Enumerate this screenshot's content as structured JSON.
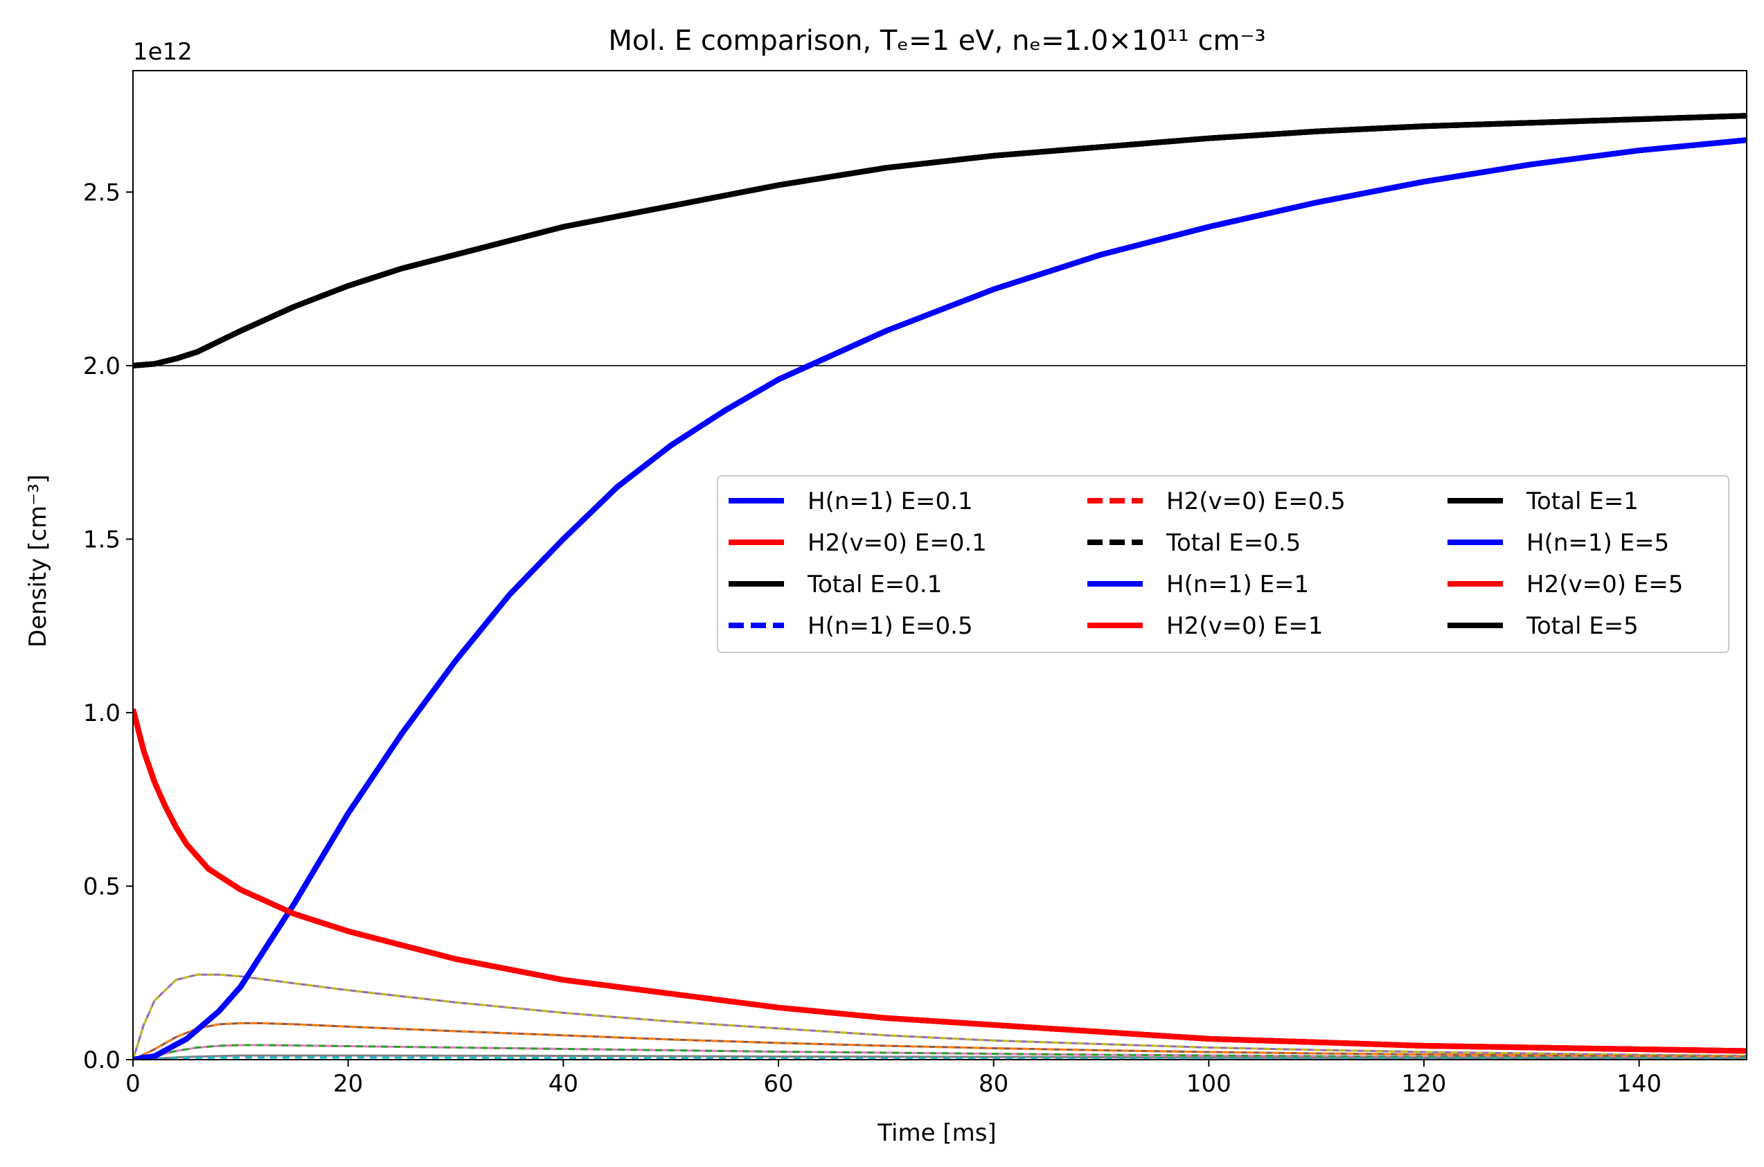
{
  "chart_data": {
    "type": "line",
    "title": "Mol. E comparison,  Tₑ=1 eV, nₑ=1.0×10¹¹ cm⁻³",
    "xlabel": "Time [ms]",
    "ylabel": "Density [cm⁻³]",
    "y_offset_label": "1e12",
    "xlim": [
      0,
      150
    ],
    "ylim": [
      0,
      2.85
    ],
    "y_scale_factor": 1000000000000.0,
    "x_ticks": [
      0,
      20,
      40,
      60,
      80,
      100,
      120,
      140
    ],
    "x_tick_labels": [
      "0",
      "20",
      "40",
      "60",
      "80",
      "100",
      "120",
      "140"
    ],
    "y_ticks": [
      0.0,
      0.5,
      1.0,
      1.5,
      2.0,
      2.5
    ],
    "y_tick_labels": [
      "0.0",
      "0.5",
      "1.0",
      "1.5",
      "2.0",
      "2.5"
    ],
    "reference_line_y": 2.0,
    "legend_position": "center-right",
    "legend_columns": 3,
    "series": [
      {
        "name": "H(n=1) E=0.1",
        "color": "#0000ff",
        "style": "solid",
        "x": [
          0,
          2,
          5,
          8,
          10,
          15,
          20,
          25,
          30,
          35,
          40,
          45,
          50,
          55,
          60,
          70,
          80,
          90,
          100,
          110,
          120,
          130,
          140,
          150
        ],
        "y": [
          0,
          0.01,
          0.06,
          0.14,
          0.21,
          0.45,
          0.71,
          0.94,
          1.15,
          1.34,
          1.5,
          1.65,
          1.77,
          1.87,
          1.96,
          2.1,
          2.22,
          2.32,
          2.4,
          2.47,
          2.53,
          2.58,
          2.62,
          2.65
        ]
      },
      {
        "name": "H2(v=0) E=0.1",
        "color": "#ff0000",
        "style": "solid",
        "x": [
          0,
          1,
          2,
          3,
          4,
          5,
          7,
          10,
          15,
          20,
          25,
          30,
          40,
          50,
          60,
          70,
          80,
          90,
          100,
          110,
          120,
          130,
          140,
          150
        ],
        "y": [
          1.01,
          0.89,
          0.8,
          0.73,
          0.67,
          0.62,
          0.55,
          0.49,
          0.42,
          0.37,
          0.33,
          0.29,
          0.23,
          0.19,
          0.15,
          0.12,
          0.1,
          0.08,
          0.06,
          0.05,
          0.04,
          0.035,
          0.03,
          0.025
        ]
      },
      {
        "name": "Total E=0.1",
        "color": "#000000",
        "style": "solid",
        "x": [
          0,
          2,
          4,
          6,
          8,
          10,
          15,
          20,
          25,
          30,
          40,
          50,
          60,
          70,
          80,
          90,
          100,
          110,
          120,
          130,
          140,
          150
        ],
        "y": [
          2.0,
          2.005,
          2.02,
          2.04,
          2.07,
          2.1,
          2.17,
          2.23,
          2.28,
          2.32,
          2.4,
          2.46,
          2.52,
          2.57,
          2.605,
          2.63,
          2.655,
          2.675,
          2.69,
          2.7,
          2.71,
          2.72
        ]
      },
      {
        "name": "H(n=1) E=0.5",
        "color": "#0000ff",
        "style": "dashed",
        "x": [
          0,
          2,
          5,
          8,
          10,
          15,
          20,
          25,
          30,
          35,
          40,
          45,
          50,
          55,
          60,
          70,
          80,
          90,
          100,
          110,
          120,
          130,
          140,
          150
        ],
        "y": [
          0,
          0.01,
          0.06,
          0.14,
          0.21,
          0.45,
          0.71,
          0.94,
          1.15,
          1.34,
          1.5,
          1.65,
          1.77,
          1.87,
          1.96,
          2.1,
          2.22,
          2.32,
          2.4,
          2.47,
          2.53,
          2.58,
          2.62,
          2.65
        ]
      },
      {
        "name": "H2(v=0) E=0.5",
        "color": "#ff0000",
        "style": "dashed",
        "x": [
          0,
          1,
          2,
          3,
          4,
          5,
          7,
          10,
          15,
          20,
          25,
          30,
          40,
          50,
          60,
          70,
          80,
          90,
          100,
          110,
          120,
          130,
          140,
          150
        ],
        "y": [
          1.01,
          0.89,
          0.8,
          0.73,
          0.67,
          0.62,
          0.55,
          0.49,
          0.42,
          0.37,
          0.33,
          0.29,
          0.23,
          0.19,
          0.15,
          0.12,
          0.1,
          0.08,
          0.06,
          0.05,
          0.04,
          0.035,
          0.03,
          0.025
        ]
      },
      {
        "name": "Total E=0.5",
        "color": "#000000",
        "style": "dashed",
        "x": [
          0,
          2,
          4,
          6,
          8,
          10,
          15,
          20,
          25,
          30,
          40,
          50,
          60,
          70,
          80,
          90,
          100,
          110,
          120,
          130,
          140,
          150
        ],
        "y": [
          2.0,
          2.005,
          2.02,
          2.04,
          2.07,
          2.1,
          2.17,
          2.23,
          2.28,
          2.32,
          2.4,
          2.46,
          2.52,
          2.57,
          2.605,
          2.63,
          2.655,
          2.675,
          2.69,
          2.7,
          2.71,
          2.72
        ]
      },
      {
        "name": "H(n=1) E=1",
        "color": "#0000ff",
        "style": "solid",
        "x": [
          0,
          2,
          5,
          8,
          10,
          15,
          20,
          25,
          30,
          35,
          40,
          45,
          50,
          55,
          60,
          70,
          80,
          90,
          100,
          110,
          120,
          130,
          140,
          150
        ],
        "y": [
          0,
          0.01,
          0.06,
          0.14,
          0.21,
          0.45,
          0.71,
          0.94,
          1.15,
          1.34,
          1.5,
          1.65,
          1.77,
          1.87,
          1.96,
          2.1,
          2.22,
          2.32,
          2.4,
          2.47,
          2.53,
          2.58,
          2.62,
          2.65
        ]
      },
      {
        "name": "H2(v=0) E=1",
        "color": "#ff0000",
        "style": "solid",
        "x": [
          0,
          1,
          2,
          3,
          4,
          5,
          7,
          10,
          15,
          20,
          25,
          30,
          40,
          50,
          60,
          70,
          80,
          90,
          100,
          110,
          120,
          130,
          140,
          150
        ],
        "y": [
          1.01,
          0.89,
          0.8,
          0.73,
          0.67,
          0.62,
          0.55,
          0.49,
          0.42,
          0.37,
          0.33,
          0.29,
          0.23,
          0.19,
          0.15,
          0.12,
          0.1,
          0.08,
          0.06,
          0.05,
          0.04,
          0.035,
          0.03,
          0.025
        ]
      },
      {
        "name": "Total E=1",
        "color": "#000000",
        "style": "solid",
        "x": [
          0,
          2,
          4,
          6,
          8,
          10,
          15,
          20,
          25,
          30,
          40,
          50,
          60,
          70,
          80,
          90,
          100,
          110,
          120,
          130,
          140,
          150
        ],
        "y": [
          2.0,
          2.005,
          2.02,
          2.04,
          2.07,
          2.1,
          2.17,
          2.23,
          2.28,
          2.32,
          2.4,
          2.46,
          2.52,
          2.57,
          2.605,
          2.63,
          2.655,
          2.675,
          2.69,
          2.7,
          2.71,
          2.72
        ]
      },
      {
        "name": "H(n=1) E=5",
        "color": "#0000ff",
        "style": "solid",
        "x": [
          0,
          2,
          5,
          8,
          10,
          15,
          20,
          25,
          30,
          35,
          40,
          45,
          50,
          55,
          60,
          70,
          80,
          90,
          100,
          110,
          120,
          130,
          140,
          150
        ],
        "y": [
          0,
          0.01,
          0.06,
          0.14,
          0.21,
          0.45,
          0.71,
          0.94,
          1.15,
          1.34,
          1.5,
          1.65,
          1.77,
          1.87,
          1.96,
          2.1,
          2.22,
          2.32,
          2.4,
          2.47,
          2.53,
          2.58,
          2.62,
          2.65
        ]
      },
      {
        "name": "H2(v=0) E=5",
        "color": "#ff0000",
        "style": "solid",
        "x": [
          0,
          1,
          2,
          3,
          4,
          5,
          7,
          10,
          15,
          20,
          25,
          30,
          40,
          50,
          60,
          70,
          80,
          90,
          100,
          110,
          120,
          130,
          140,
          150
        ],
        "y": [
          1.01,
          0.89,
          0.8,
          0.73,
          0.67,
          0.62,
          0.55,
          0.49,
          0.42,
          0.37,
          0.33,
          0.29,
          0.23,
          0.19,
          0.15,
          0.12,
          0.1,
          0.08,
          0.06,
          0.05,
          0.04,
          0.035,
          0.03,
          0.025
        ]
      },
      {
        "name": "Total E=5",
        "color": "#000000",
        "style": "solid",
        "x": [
          0,
          2,
          4,
          6,
          8,
          10,
          15,
          20,
          25,
          30,
          40,
          50,
          60,
          70,
          80,
          90,
          100,
          110,
          120,
          130,
          140,
          150
        ],
        "y": [
          2.0,
          2.005,
          2.02,
          2.04,
          2.07,
          2.1,
          2.17,
          2.23,
          2.28,
          2.32,
          2.4,
          2.46,
          2.52,
          2.57,
          2.605,
          2.63,
          2.655,
          2.675,
          2.69,
          2.7,
          2.71,
          2.72
        ]
      }
    ],
    "minor_series": [
      {
        "color": "#9467bd",
        "style": "solid",
        "x": [
          0,
          1,
          2,
          4,
          6,
          8,
          10,
          15,
          20,
          30,
          40,
          50,
          60,
          70,
          80,
          90,
          100,
          110,
          120,
          130,
          140,
          150
        ],
        "y": [
          0,
          0.1,
          0.17,
          0.23,
          0.245,
          0.245,
          0.24,
          0.22,
          0.2,
          0.165,
          0.135,
          0.11,
          0.09,
          0.07,
          0.055,
          0.045,
          0.035,
          0.028,
          0.022,
          0.018,
          0.014,
          0.011
        ]
      },
      {
        "color": "#bcbd22",
        "style": "dashed",
        "x": [
          0,
          1,
          2,
          4,
          6,
          8,
          10,
          15,
          20,
          30,
          40,
          50,
          60,
          70,
          80,
          90,
          100,
          110,
          120,
          130,
          140,
          150
        ],
        "y": [
          0,
          0.1,
          0.17,
          0.23,
          0.245,
          0.245,
          0.24,
          0.22,
          0.2,
          0.165,
          0.135,
          0.11,
          0.09,
          0.07,
          0.055,
          0.045,
          0.035,
          0.028,
          0.022,
          0.018,
          0.014,
          0.011
        ]
      },
      {
        "color": "#8c564b",
        "style": "solid",
        "x": [
          0,
          2,
          4,
          6,
          8,
          10,
          12,
          15,
          20,
          30,
          40,
          50,
          60,
          70,
          80,
          90,
          100,
          110,
          120,
          130,
          140,
          150
        ],
        "y": [
          0,
          0.03,
          0.065,
          0.09,
          0.102,
          0.105,
          0.105,
          0.102,
          0.095,
          0.082,
          0.07,
          0.058,
          0.048,
          0.04,
          0.033,
          0.027,
          0.022,
          0.018,
          0.015,
          0.012,
          0.01,
          0.008
        ]
      },
      {
        "color": "#ff7f0e",
        "style": "dashed",
        "x": [
          0,
          2,
          4,
          6,
          8,
          10,
          12,
          15,
          20,
          30,
          40,
          50,
          60,
          70,
          80,
          90,
          100,
          110,
          120,
          130,
          140,
          150
        ],
        "y": [
          0,
          0.03,
          0.065,
          0.09,
          0.102,
          0.105,
          0.105,
          0.102,
          0.095,
          0.082,
          0.07,
          0.058,
          0.048,
          0.04,
          0.033,
          0.027,
          0.022,
          0.018,
          0.015,
          0.012,
          0.01,
          0.008
        ]
      },
      {
        "color": "#e377c2",
        "style": "solid",
        "x": [
          0,
          2,
          4,
          6,
          8,
          10,
          12,
          15,
          20,
          30,
          40,
          50,
          60,
          70,
          80,
          90,
          100,
          110,
          120,
          130,
          140,
          150
        ],
        "y": [
          0,
          0.01,
          0.025,
          0.035,
          0.04,
          0.042,
          0.042,
          0.041,
          0.039,
          0.035,
          0.031,
          0.027,
          0.023,
          0.02,
          0.017,
          0.014,
          0.012,
          0.01,
          0.008,
          0.007,
          0.006,
          0.005
        ]
      },
      {
        "color": "#2ca02c",
        "style": "dashed",
        "x": [
          0,
          2,
          4,
          6,
          8,
          10,
          12,
          15,
          20,
          30,
          40,
          50,
          60,
          70,
          80,
          90,
          100,
          110,
          120,
          130,
          140,
          150
        ],
        "y": [
          0,
          0.01,
          0.025,
          0.035,
          0.04,
          0.042,
          0.042,
          0.041,
          0.039,
          0.035,
          0.031,
          0.027,
          0.023,
          0.02,
          0.017,
          0.014,
          0.012,
          0.01,
          0.008,
          0.007,
          0.006,
          0.005
        ]
      },
      {
        "color": "#7f7f7f",
        "style": "solid",
        "x": [
          0,
          5,
          10,
          20,
          40,
          60,
          80,
          100,
          120,
          150
        ],
        "y": [
          0,
          0.008,
          0.012,
          0.012,
          0.011,
          0.009,
          0.008,
          0.006,
          0.005,
          0.004
        ]
      },
      {
        "color": "#17becf",
        "style": "dashed",
        "x": [
          0,
          5,
          10,
          20,
          40,
          60,
          80,
          100,
          120,
          150
        ],
        "y": [
          0,
          0.005,
          0.006,
          0.006,
          0.005,
          0.004,
          0.0035,
          0.003,
          0.0025,
          0.002
        ]
      }
    ]
  }
}
